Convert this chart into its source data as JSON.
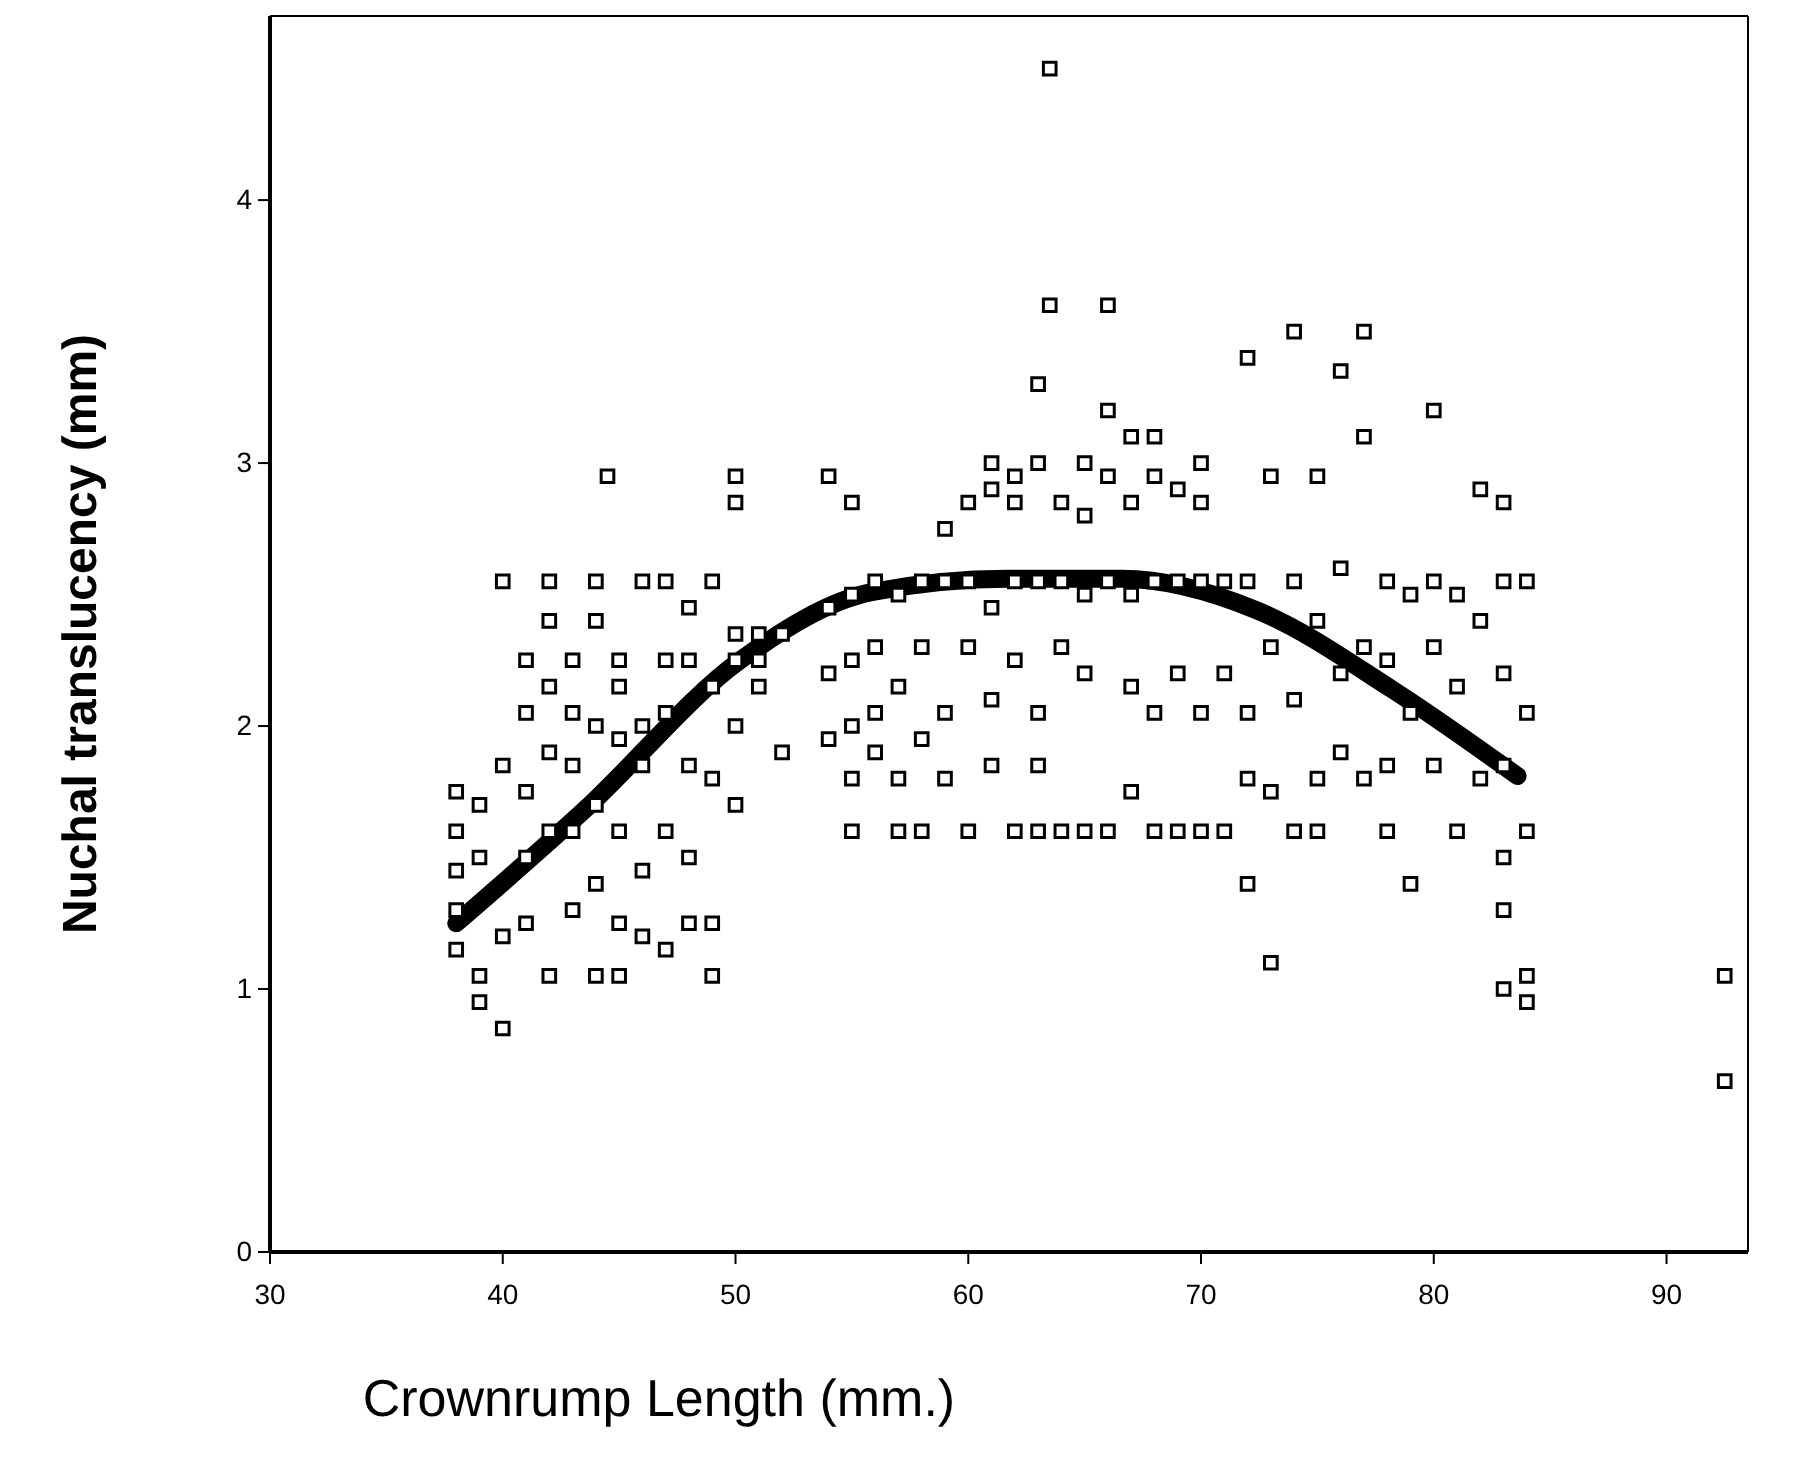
{
  "chart_data": {
    "type": "scatter",
    "xlabel": "Crownrump  Length (mm.)",
    "ylabel": "Nuchal translucency (mm)",
    "xlim": [
      30,
      93.5
    ],
    "xticks": [
      30,
      40,
      50,
      60,
      70,
      80,
      90
    ],
    "ylim": [
      0,
      4.7
    ],
    "yticks": [
      0,
      1,
      2,
      3,
      4
    ],
    "grid": false,
    "series": [
      {
        "marker": "square",
        "color": "#000000",
        "x": [
          38,
          38,
          38,
          38,
          38,
          39,
          39,
          39,
          39,
          40,
          40,
          40,
          40,
          41,
          41,
          41,
          41,
          41,
          42,
          42,
          42,
          42,
          42,
          42,
          43,
          43,
          43,
          43,
          43,
          44,
          44,
          44,
          44,
          44,
          44,
          44.5,
          45,
          45,
          45,
          45,
          45,
          45,
          46,
          46,
          46,
          46,
          46,
          47,
          47,
          47,
          47,
          47,
          48,
          48,
          48,
          48,
          48,
          49,
          49,
          49,
          49,
          49,
          50,
          50,
          50,
          50,
          50,
          50,
          51,
          51,
          51,
          52,
          52,
          54,
          54,
          54,
          54,
          55,
          55,
          55,
          55,
          55,
          55,
          56,
          56,
          56,
          56,
          57,
          57,
          57,
          57,
          58,
          58,
          58,
          58,
          59,
          59,
          59,
          59,
          60,
          60,
          60,
          60,
          61,
          61,
          61,
          61,
          61,
          62,
          62,
          62,
          62,
          62,
          63,
          63,
          63,
          63,
          63,
          63,
          63.5,
          63.5,
          64,
          64,
          64,
          64,
          65,
          65,
          65,
          65,
          65,
          66,
          66,
          66,
          66,
          66,
          67,
          67,
          67,
          67,
          67,
          68,
          68,
          68,
          68,
          68,
          69,
          69,
          69,
          69,
          70,
          70,
          70,
          70,
          70,
          71,
          71,
          71,
          72,
          72,
          72,
          72,
          72,
          73,
          73,
          73,
          73,
          74,
          74,
          74,
          74,
          75,
          75,
          75,
          75,
          76,
          76,
          76,
          76,
          77,
          77,
          77,
          77,
          78,
          78,
          78,
          78,
          79,
          79,
          79,
          80,
          80,
          80,
          80,
          81,
          81,
          81,
          82,
          82,
          82,
          83,
          83,
          83,
          83,
          83,
          83,
          83,
          84,
          84,
          84,
          84,
          84,
          92.5,
          92.5
        ],
        "values": [
          1.75,
          1.6,
          1.45,
          1.3,
          1.15,
          1.7,
          1.5,
          1.05,
          0.95,
          2.55,
          1.85,
          1.2,
          0.85,
          2.25,
          2.05,
          1.75,
          1.5,
          1.25,
          2.55,
          2.4,
          2.15,
          1.9,
          1.6,
          1.05,
          2.25,
          2.05,
          1.85,
          1.6,
          1.3,
          2.55,
          2.4,
          2.0,
          1.7,
          1.4,
          1.05,
          2.95,
          2.25,
          2.15,
          1.95,
          1.6,
          1.25,
          1.05,
          2.55,
          2.0,
          1.85,
          1.45,
          1.2,
          2.55,
          2.25,
          2.05,
          1.6,
          1.15,
          2.45,
          2.25,
          1.85,
          1.5,
          1.25,
          2.55,
          2.15,
          1.8,
          1.25,
          1.05,
          2.95,
          2.85,
          2.35,
          2.25,
          2.0,
          1.7,
          2.35,
          2.25,
          2.15,
          2.35,
          1.9,
          2.95,
          2.45,
          2.2,
          1.95,
          2.85,
          2.5,
          2.25,
          2.0,
          1.8,
          1.6,
          2.55,
          2.3,
          2.05,
          1.9,
          2.5,
          2.15,
          1.8,
          1.6,
          2.55,
          2.3,
          1.95,
          1.6,
          2.75,
          2.55,
          2.05,
          1.8,
          2.85,
          2.55,
          2.3,
          1.6,
          3.0,
          2.9,
          2.45,
          2.1,
          1.85,
          2.95,
          2.85,
          2.55,
          2.25,
          1.6,
          3.3,
          3.0,
          2.55,
          2.05,
          1.85,
          1.6,
          4.5,
          3.6,
          2.85,
          2.55,
          2.3,
          1.6,
          3.0,
          2.8,
          2.5,
          2.2,
          1.6,
          3.6,
          3.2,
          2.95,
          2.55,
          1.6,
          3.1,
          2.85,
          2.5,
          2.15,
          1.75,
          3.1,
          2.95,
          2.55,
          2.05,
          1.6,
          2.9,
          2.55,
          2.2,
          1.6,
          3.0,
          2.85,
          2.55,
          2.05,
          1.6,
          2.55,
          2.2,
          1.6,
          3.4,
          2.55,
          2.05,
          1.8,
          1.4,
          2.95,
          2.3,
          1.75,
          1.1,
          3.5,
          2.55,
          2.1,
          1.6,
          2.95,
          2.4,
          1.8,
          1.6,
          3.35,
          2.6,
          2.2,
          1.9,
          3.5,
          3.1,
          2.3,
          1.8,
          2.55,
          2.25,
          1.85,
          1.6,
          2.5,
          2.05,
          1.4,
          3.2,
          2.55,
          2.3,
          1.85,
          2.5,
          2.15,
          1.6,
          2.9,
          2.4,
          1.8,
          2.85,
          2.55,
          2.2,
          1.85,
          1.5,
          1.3,
          1.0,
          2.55,
          2.05,
          1.6,
          1.05,
          0.95,
          1.05,
          0.65
        ]
      },
      {
        "type": "line",
        "color": "#000000",
        "x": [
          38,
          43.5,
          50.2,
          55.9,
          61.7,
          66.6,
          72.4,
          78.2,
          83.6
        ],
        "values": [
          1.25,
          1.68,
          2.25,
          2.51,
          2.56,
          2.56,
          2.44,
          2.14,
          1.81
        ]
      }
    ]
  }
}
